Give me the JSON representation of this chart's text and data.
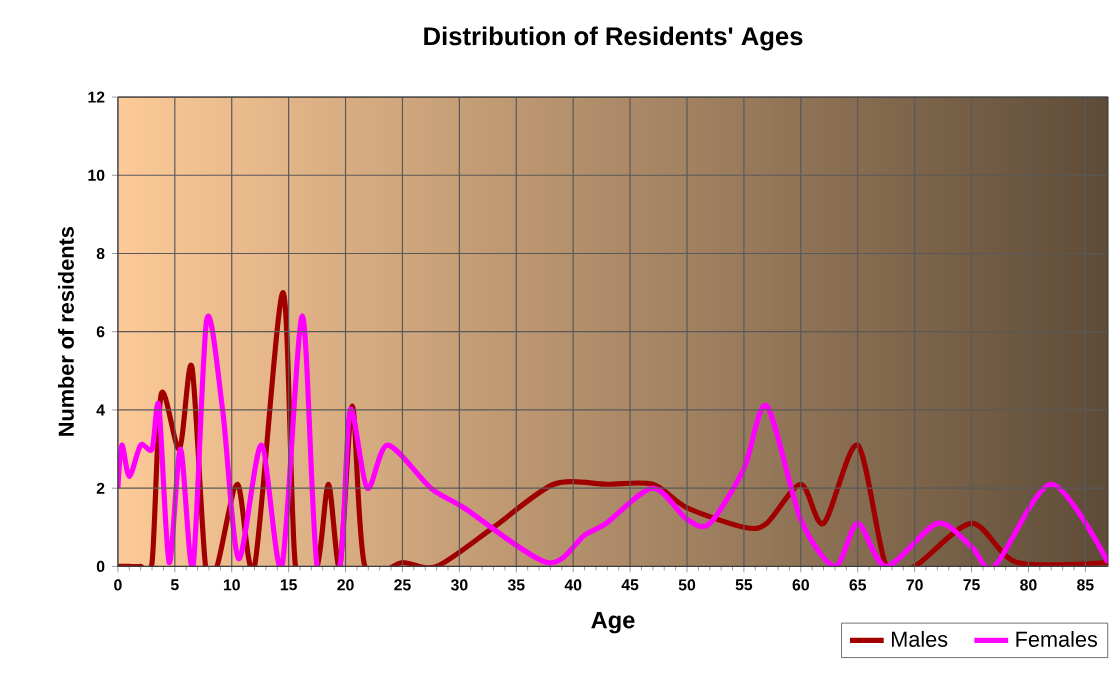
{
  "chart_data": {
    "type": "line",
    "title": "Distribution of Residents' Ages",
    "xlabel": "Age",
    "ylabel": "Number of residents",
    "xlim": [
      0,
      87
    ],
    "xticks": [
      0,
      5,
      10,
      15,
      20,
      25,
      30,
      35,
      40,
      45,
      50,
      55,
      60,
      65,
      70,
      75,
      80,
      85
    ],
    "ylim": [
      0,
      12
    ],
    "yticks": [
      0,
      2,
      4,
      6,
      8,
      10,
      12
    ],
    "grid": true,
    "legend": "bottom right",
    "marker": "none",
    "line_style": "solid",
    "series": [
      {
        "name": "Males",
        "color": "#a00000",
        "x": [
          0,
          1,
          2,
          3,
          3.8,
          5.4,
          6.5,
          7.7,
          8.7,
          10.5,
          12,
          14.5,
          15.6,
          17.5,
          18.5,
          19.5,
          20.6,
          21.7,
          25,
          28,
          33,
          38.3,
          43,
          47,
          50,
          55,
          57,
          60,
          62,
          65,
          67.5,
          70,
          75,
          79,
          87
        ],
        "values": [
          0,
          0,
          0,
          0.1,
          4.4,
          3,
          5.1,
          0,
          0,
          2.1,
          0,
          7,
          0,
          0,
          2.1,
          0,
          4.1,
          0,
          0.1,
          0,
          1,
          2.1,
          2.1,
          2.1,
          1.5,
          1,
          1.1,
          2.1,
          1.1,
          3.1,
          0,
          0,
          1.1,
          0.1,
          0.1
        ]
      },
      {
        "name": "Females",
        "color": "#ff00ff",
        "x": [
          0,
          0.35,
          1,
          2,
          3,
          3.6,
          4.5,
          5.5,
          6.6,
          7.8,
          9.2,
          10.6,
          12.6,
          14.4,
          16.2,
          17.5,
          19.5,
          20.4,
          21.9,
          23.7,
          27.5,
          30.4,
          37.7,
          41,
          42.9,
          47,
          50,
          52,
          55,
          57,
          60,
          63,
          65,
          67.5,
          72,
          75,
          77,
          82,
          87
        ],
        "values": [
          2,
          3.1,
          2.3,
          3.1,
          3,
          4.1,
          0.1,
          3,
          0,
          6.3,
          4,
          0.2,
          3.1,
          0,
          6.4,
          0,
          0,
          4,
          2,
          3.1,
          2,
          1.5,
          0.1,
          0.8,
          1.1,
          2,
          1.2,
          1.1,
          2.5,
          4.1,
          1.2,
          0,
          1.1,
          0,
          1.1,
          0.5,
          0,
          2.1,
          0.1
        ]
      }
    ]
  }
}
